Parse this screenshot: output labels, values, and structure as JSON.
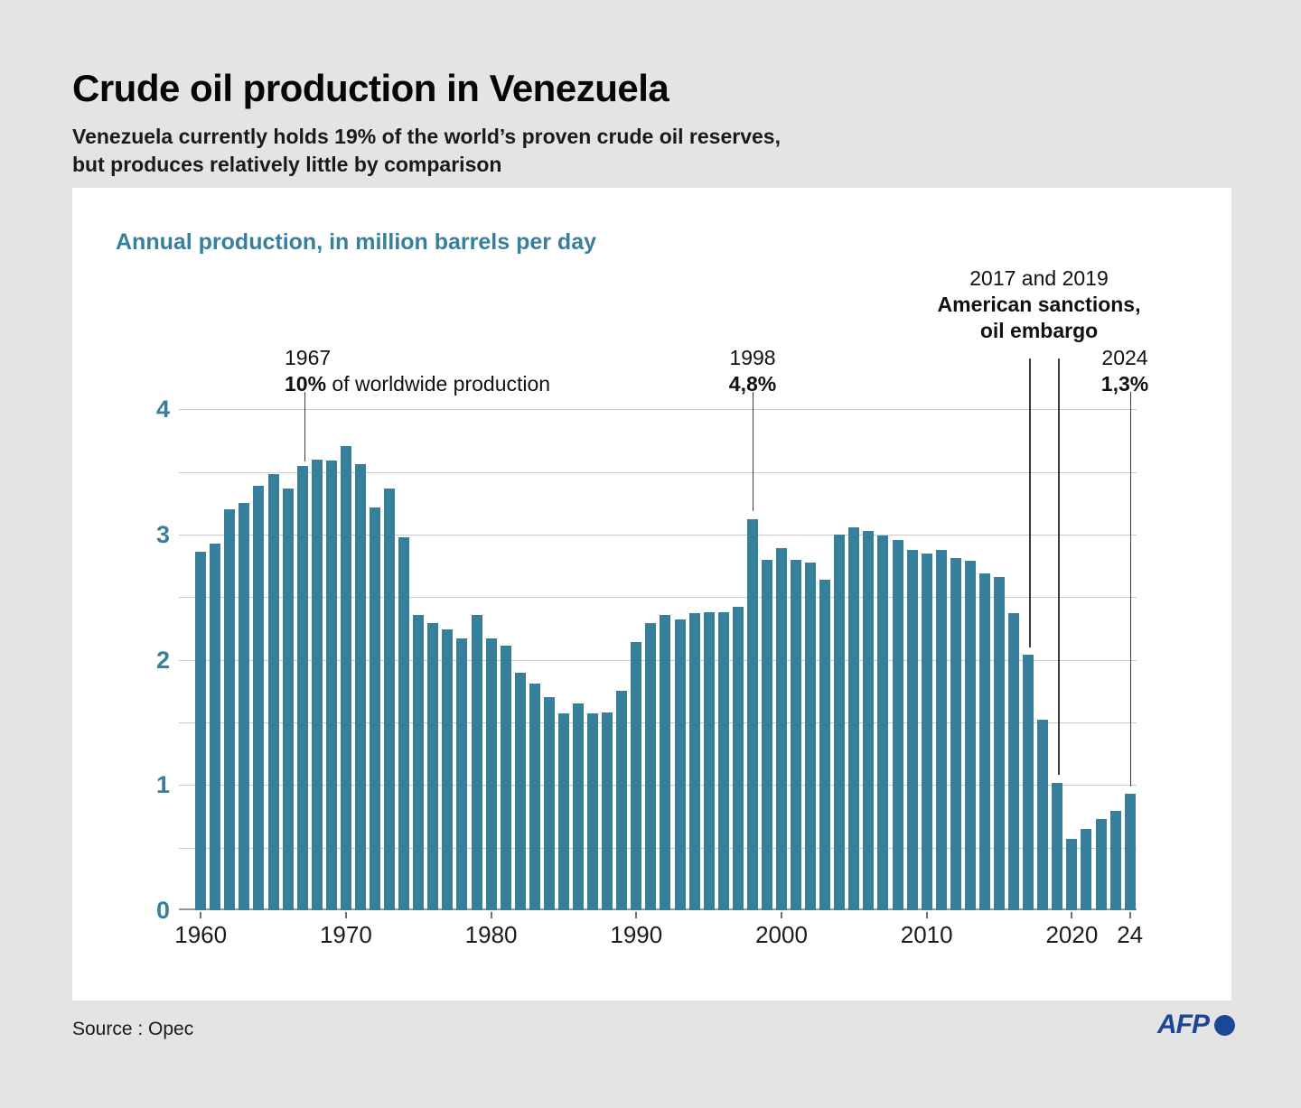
{
  "header": {
    "title": "Crude oil production in Venezuela",
    "subtitle_line1": "Venezuela currently holds 19% of the world’s proven crude oil reserves,",
    "subtitle_line2": "but produces relatively little by comparison"
  },
  "chart_data": {
    "type": "bar",
    "title": "Annual production, in million barrels per day",
    "xlabel": "",
    "ylabel": "million barrels per day",
    "ylim": [
      0,
      4
    ],
    "grid_step": 0.5,
    "grid": true,
    "legend_position": "none",
    "bar_color": "#37809b",
    "y_ticks": [
      "0",
      "1",
      "2",
      "3",
      "4"
    ],
    "x_tick_years": [
      1960,
      1970,
      1980,
      1990,
      2000,
      2010,
      2020,
      2024
    ],
    "x_tick_labels": [
      "1960",
      "1970",
      "1980",
      "1990",
      "2000",
      "2010",
      "2020",
      "24"
    ],
    "x": [
      1960,
      1961,
      1962,
      1963,
      1964,
      1965,
      1966,
      1967,
      1968,
      1969,
      1970,
      1971,
      1972,
      1973,
      1974,
      1975,
      1976,
      1977,
      1978,
      1979,
      1980,
      1981,
      1982,
      1983,
      1984,
      1985,
      1986,
      1987,
      1988,
      1989,
      1990,
      1991,
      1992,
      1993,
      1994,
      1995,
      1996,
      1997,
      1998,
      1999,
      2000,
      2001,
      2002,
      2003,
      2004,
      2005,
      2006,
      2007,
      2008,
      2009,
      2010,
      2011,
      2012,
      2013,
      2014,
      2015,
      2016,
      2017,
      2018,
      2019,
      2020,
      2021,
      2022,
      2023,
      2024
    ],
    "values": [
      2.86,
      2.93,
      3.2,
      3.25,
      3.39,
      3.48,
      3.37,
      3.55,
      3.6,
      3.59,
      3.71,
      3.56,
      3.22,
      3.37,
      2.98,
      2.36,
      2.29,
      2.24,
      2.17,
      2.36,
      2.17,
      2.11,
      1.9,
      1.81,
      1.7,
      1.57,
      1.65,
      1.57,
      1.58,
      1.75,
      2.14,
      2.29,
      2.36,
      2.32,
      2.37,
      2.38,
      2.38,
      2.42,
      3.12,
      2.8,
      2.89,
      2.8,
      2.78,
      2.64,
      3.0,
      3.06,
      3.03,
      2.99,
      2.96,
      2.88,
      2.85,
      2.88,
      2.81,
      2.79,
      2.69,
      2.66,
      2.37,
      2.04,
      1.52,
      1.02,
      0.57,
      0.65,
      0.73,
      0.79,
      0.93
    ],
    "annotations": [
      {
        "id": "annotation-1967",
        "lines": [
          [
            {
              "t": "1967",
              "b": false
            }
          ],
          [
            {
              "t": "10%",
              "b": true
            },
            {
              "t": " of worldwide production",
              "b": false
            }
          ]
        ]
      },
      {
        "id": "annotation-1998",
        "lines": [
          [
            {
              "t": "1998",
              "b": false
            }
          ],
          [
            {
              "t": "4,8%",
              "b": true
            }
          ]
        ]
      },
      {
        "id": "annotation-2017-2019",
        "lines": [
          [
            {
              "t": "2017 and 2019",
              "b": false
            }
          ],
          [
            {
              "t": "American sanctions,",
              "b": true
            }
          ],
          [
            {
              "t": "oil embargo",
              "b": true
            }
          ]
        ]
      },
      {
        "id": "annotation-2024",
        "lines": [
          [
            {
              "t": "2024",
              "b": false
            }
          ],
          [
            {
              "t": "1,3%",
              "b": true
            }
          ]
        ]
      }
    ]
  },
  "footer": {
    "source": "Source : Opec",
    "logo_text": "AFP"
  }
}
